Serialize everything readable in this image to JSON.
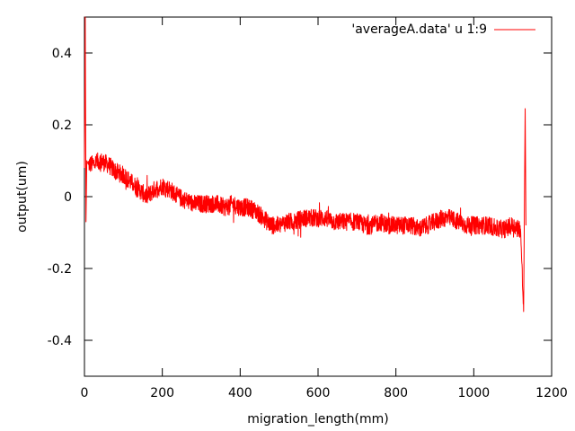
{
  "chart_data": {
    "type": "line",
    "title": "",
    "xlabel": "migration_length(mm)",
    "ylabel": "output(um)",
    "xlim": [
      0,
      1200
    ],
    "ylim": [
      -0.5,
      0.5
    ],
    "x_ticks": [
      0,
      200,
      400,
      600,
      800,
      1000,
      1200
    ],
    "x_tick_labels": [
      "0",
      "200",
      "400",
      "600",
      "800",
      "1000",
      "1200"
    ],
    "y_ticks": [
      0.4,
      0.2,
      0,
      -0.2,
      -0.4
    ],
    "y_tick_labels": [
      "0.4",
      "0.2",
      "0",
      "-0.2",
      "-0.4"
    ],
    "grid": false,
    "legend_position": "top-right",
    "series": [
      {
        "name": "'averageA.data' u 1:9",
        "color": "#ff0000",
        "x": [
          0,
          2,
          4,
          6,
          10,
          20,
          40,
          60,
          80,
          100,
          120,
          140,
          160,
          180,
          200,
          220,
          240,
          260,
          280,
          300,
          320,
          340,
          360,
          380,
          400,
          420,
          440,
          460,
          480,
          500,
          520,
          540,
          560,
          580,
          600,
          620,
          640,
          660,
          680,
          700,
          720,
          740,
          760,
          780,
          800,
          820,
          840,
          860,
          880,
          900,
          920,
          940,
          960,
          980,
          1000,
          1020,
          1040,
          1060,
          1080,
          1100,
          1120,
          1128,
          1132,
          1134
        ],
        "y": [
          0.08,
          0.5,
          -0.07,
          0.1,
          0.09,
          0.09,
          0.1,
          0.09,
          0.07,
          0.06,
          0.04,
          0.02,
          0.0,
          0.02,
          0.03,
          0.02,
          0.0,
          -0.01,
          -0.02,
          -0.02,
          -0.02,
          -0.02,
          -0.03,
          -0.02,
          -0.03,
          -0.03,
          -0.04,
          -0.06,
          -0.08,
          -0.08,
          -0.07,
          -0.07,
          -0.06,
          -0.06,
          -0.06,
          -0.06,
          -0.07,
          -0.07,
          -0.07,
          -0.07,
          -0.08,
          -0.08,
          -0.07,
          -0.08,
          -0.08,
          -0.08,
          -0.08,
          -0.09,
          -0.08,
          -0.07,
          -0.06,
          -0.06,
          -0.07,
          -0.08,
          -0.08,
          -0.08,
          -0.08,
          -0.09,
          -0.09,
          -0.08,
          -0.09,
          -0.32,
          0.245,
          -0.08
        ],
        "noise_amplitude": 0.025
      }
    ]
  }
}
